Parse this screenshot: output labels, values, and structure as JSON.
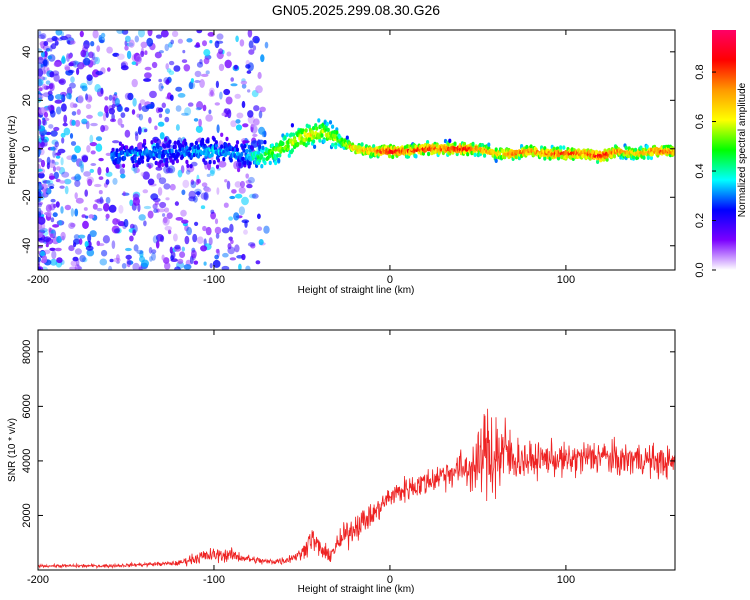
{
  "title": "GN05.2025.299.08.30.G26",
  "colors": {
    "snr_line": "#ee2222",
    "axis": "#000000"
  },
  "chart_data": [
    {
      "type": "heatmap",
      "title": "",
      "xlabel": "Height of straight line (km)",
      "ylabel": "Frequency (Hz)",
      "xlim": [
        -200,
        162
      ],
      "ylim": [
        -50,
        49
      ],
      "xticks": [
        -200,
        -100,
        0,
        100
      ],
      "yticks": [
        -40,
        -20,
        0,
        20,
        40
      ],
      "colorbar": {
        "label": "Normalized spectral amplitude",
        "range": [
          0.0,
          0.97
        ],
        "ticks": [
          0.0,
          0.2,
          0.4,
          0.6,
          0.8
        ],
        "colormap": [
          "#ffffff",
          "#7b00ff",
          "#0000ff",
          "#00ffff",
          "#00ff00",
          "#ffff00",
          "#ff9900",
          "#ff0000",
          "#ff0066"
        ]
      },
      "ridge": {
        "x": [
          -158,
          -140,
          -120,
          -100,
          -85,
          -75,
          -65,
          -55,
          -45,
          -38,
          -30,
          -20,
          -10,
          0,
          10,
          20,
          30,
          40,
          50,
          60,
          70,
          80,
          90,
          100,
          110,
          120,
          130,
          140,
          150,
          162
        ],
        "y": [
          -3,
          -2,
          -1,
          -1,
          -2,
          -4,
          -1,
          3,
          6,
          7,
          4,
          0,
          -1,
          -1,
          -1,
          0,
          0,
          0,
          0,
          -2,
          -2,
          -1,
          -2,
          -2,
          -2,
          -3,
          -1,
          -2,
          -1,
          -1
        ],
        "amplitude": [
          0.3,
          0.3,
          0.3,
          0.35,
          0.3,
          0.45,
          0.55,
          0.6,
          0.65,
          0.6,
          0.55,
          0.7,
          0.75,
          0.9,
          0.8,
          0.85,
          0.8,
          0.9,
          0.75,
          0.7,
          0.8,
          0.75,
          0.8,
          0.85,
          0.8,
          0.9,
          0.75,
          0.7,
          0.8,
          0.75
        ]
      },
      "grid": false
    },
    {
      "type": "line",
      "title": "",
      "xlabel": "Height of straight line (km)",
      "ylabel": "SNR (10 * v/v)",
      "xlim": [
        -200,
        162
      ],
      "ylim": [
        0,
        8800
      ],
      "xticks": [
        -200,
        -100,
        0,
        100
      ],
      "yticks": [
        2000,
        4000,
        6000,
        8000
      ],
      "series": [
        {
          "x": [
            -200,
            -180,
            -160,
            -140,
            -120,
            -110,
            -100,
            -90,
            -80,
            -70,
            -60,
            -50,
            -45,
            -40,
            -35,
            -30,
            -25,
            -20,
            -10,
            0,
            10,
            20,
            30,
            40,
            50,
            55,
            60,
            65,
            70,
            80,
            90,
            100,
            110,
            120,
            130,
            140,
            150,
            162
          ],
          "y": [
            150,
            150,
            150,
            200,
            250,
            450,
            550,
            550,
            400,
            300,
            350,
            600,
            1200,
            800,
            500,
            900,
            1300,
            1600,
            2000,
            2700,
            3000,
            3200,
            3500,
            3700,
            3800,
            4500,
            4200,
            4300,
            4100,
            4000,
            4100,
            4000,
            4100,
            4200,
            4000,
            4100,
            4000,
            3900
          ],
          "noise": [
            80,
            100,
            100,
            120,
            150,
            400,
            450,
            400,
            250,
            200,
            250,
            350,
            800,
            700,
            400,
            600,
            800,
            900,
            700,
            700,
            800,
            800,
            900,
            1100,
            1800,
            2800,
            3500,
            2500,
            1500,
            1000,
            1000,
            1000,
            1100,
            1100,
            1000,
            1000,
            1000,
            900
          ]
        }
      ],
      "grid": false
    }
  ]
}
